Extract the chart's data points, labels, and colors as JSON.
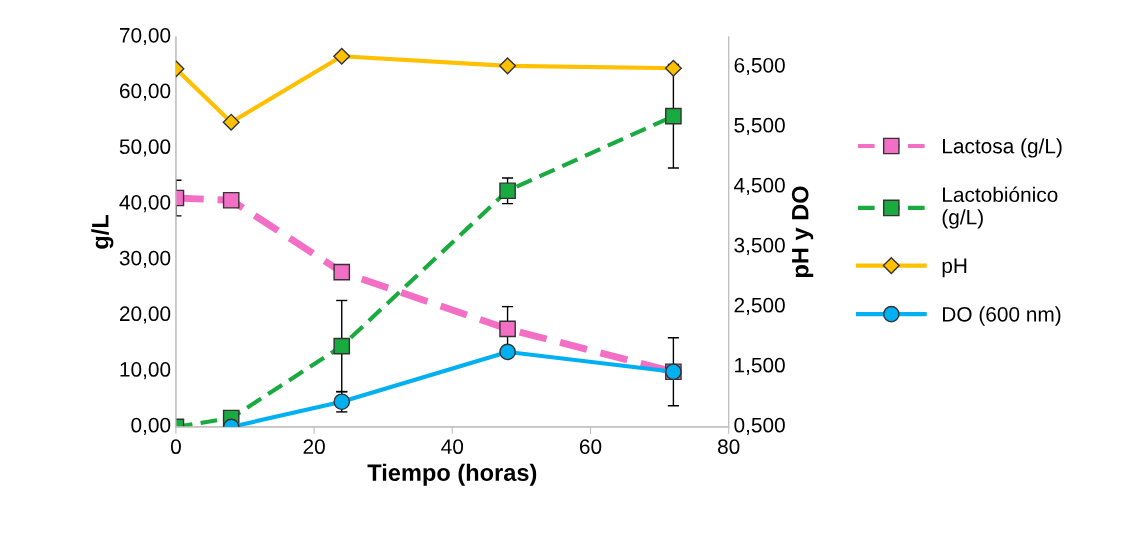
{
  "chart_data": {
    "type": "line",
    "xlabel": "Tiempo (horas)",
    "ylabel": "g/L",
    "y2label": "pH y DO",
    "xlim": [
      0,
      80
    ],
    "xticks": [
      0,
      20,
      40,
      60,
      80
    ],
    "ylim": [
      0,
      70
    ],
    "yticks": [
      {
        "value": 0,
        "label": "0,00"
      },
      {
        "value": 10,
        "label": "10,00"
      },
      {
        "value": 20,
        "label": "20,00"
      },
      {
        "value": 30,
        "label": "30,00"
      },
      {
        "value": 40,
        "label": "40,00"
      },
      {
        "value": 50,
        "label": "50,00"
      },
      {
        "value": 60,
        "label": "60,00"
      },
      {
        "value": 70,
        "label": "70,00"
      }
    ],
    "y2lim": [
      0.5,
      7.0
    ],
    "y2ticks": [
      {
        "value": 0.5,
        "label": "0,500"
      },
      {
        "value": 1.5,
        "label": "1,500"
      },
      {
        "value": 2.5,
        "label": "2,500"
      },
      {
        "value": 3.5,
        "label": "3,500"
      },
      {
        "value": 4.5,
        "label": "4,500"
      },
      {
        "value": 5.5,
        "label": "5,500"
      },
      {
        "value": 6.5,
        "label": "6,500"
      }
    ],
    "grid": false,
    "legend": "right",
    "series": [
      {
        "name": "Lactosa (g/L)",
        "color": "#f36fc6",
        "x": [
          0,
          8,
          24,
          48,
          72
        ],
        "values": [
          41.1,
          40.7,
          27.8,
          17.6,
          9.9
        ],
        "errors": [
          3.2,
          null,
          null,
          4.0,
          6.1
        ],
        "marker": "square",
        "line_style": "dashed"
      },
      {
        "name": "Lactobiónico (g/L)",
        "color": "#1aab40",
        "x": [
          0,
          8,
          24,
          48,
          72
        ],
        "values": [
          0.0,
          1.6,
          14.5,
          42.4,
          55.8
        ],
        "errors": [
          null,
          null,
          8.2,
          2.3,
          9.3
        ],
        "marker": "square",
        "line_style": "dashed"
      },
      {
        "name": "pH",
        "color": "#ffc000",
        "axis": "y2",
        "x": [
          0,
          8,
          24,
          48,
          72
        ],
        "values": [
          6.47,
          5.58,
          6.68,
          6.52,
          6.48
        ],
        "marker": "diamond",
        "line_style": "solid"
      },
      {
        "name": "DO (600 nm)",
        "color": "#00b0f0",
        "axis": "y2",
        "x": [
          8,
          24,
          48,
          72
        ],
        "values": [
          0.5,
          0.92,
          1.75,
          1.42
        ],
        "errors": [
          null,
          0.17,
          null,
          null
        ],
        "marker": "circle",
        "line_style": "solid"
      }
    ]
  }
}
